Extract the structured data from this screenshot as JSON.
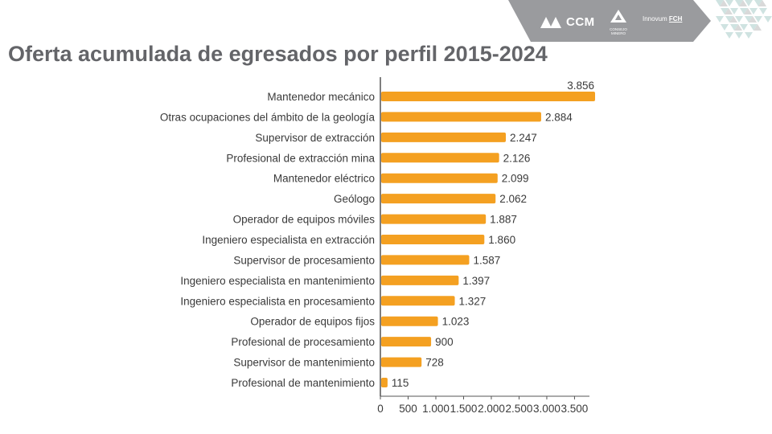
{
  "slide": {
    "title": "Oferta acumulada de egresados por perfil 2015-2024"
  },
  "logos": {
    "ccm": "CCM",
    "consejo_minero": "CONSEJO MINERO",
    "innovum": "Innovum",
    "fch": "FCH"
  },
  "colors": {
    "bar": "#f4a021",
    "title": "#646569",
    "header_gray": "#9a9b9e",
    "axis": "#555555"
  },
  "chart_data": {
    "type": "bar",
    "orientation": "horizontal",
    "categories": [
      "Mantenedor mecánico",
      "Otras ocupaciones del ámbito de la geología",
      "Supervisor de extracción",
      "Profesional de extracción mina",
      "Mantenedor eléctrico",
      "Geólogo",
      "Operador de equipos móviles",
      "Ingeniero especialista en extracción",
      "Supervisor de procesamiento",
      "Ingeniero especialista en mantenimiento",
      "Ingeniero especialista en procesamiento",
      "Operador de equipos fijos",
      "Profesional de procesamiento",
      "Supervisor de mantenimiento",
      "Profesional de mantenimiento"
    ],
    "values": [
      3856,
      2884,
      2247,
      2126,
      2099,
      2062,
      1887,
      1860,
      1587,
      1397,
      1327,
      1023,
      900,
      728,
      115
    ],
    "value_labels": [
      "3.856",
      "2.884",
      "2.247",
      "2.126",
      "2.099",
      "2.062",
      "1.887",
      "1.860",
      "1.587",
      "1.397",
      "1.327",
      "1.023",
      "900",
      "728",
      "115"
    ],
    "x_ticks": [
      0,
      500,
      1000,
      1500,
      2000,
      2500,
      3000,
      3500
    ],
    "x_tick_labels": [
      "0",
      "500",
      "1.000",
      "1.500",
      "2.000",
      "2.500",
      "3.000",
      "3.500"
    ],
    "xlim": [
      0,
      3856
    ],
    "title": "",
    "xlabel": "",
    "ylabel": "",
    "grid": false,
    "legend": "none"
  }
}
